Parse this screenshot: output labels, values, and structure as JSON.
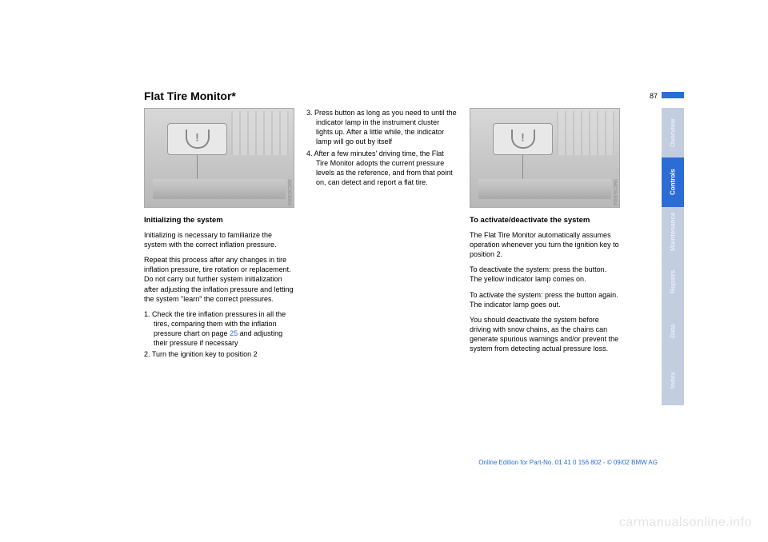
{
  "page": {
    "title": "Flat Tire Monitor*",
    "number": "87"
  },
  "col1": {
    "figure_code": "3MC05300A",
    "subhead": "Initializing the system",
    "p1": "Initializing is necessary to familiarize the system with the correct inflation pressure.",
    "p2": "Repeat this process after any changes in tire inflation pressure, tire rotation or replacement. Do not carry out further system initialization after adjusting the inflation pressure and letting the system \"learn\" the correct pressures.",
    "li1a": "1. Check the tire inflation pressures in all the tires, comparing them with the inflation pressure chart on page ",
    "li1_link": "25",
    "li1b": " and adjusting their pressure if necessary",
    "li2": "2. Turn the ignition key to position 2"
  },
  "col2": {
    "li3": "3. Press button as long as you need to until the indicator lamp in the instrument cluster lights up. After a little while, the indicator lamp will go out by itself",
    "li4": "4. After a few minutes' driving time, the Flat Tire Monitor adopts the current pressure levels as the reference, and from that point on, can detect and report a flat tire."
  },
  "col3": {
    "figure_code": "3MC05300A",
    "subhead": "To activate/deactivate the system",
    "p1": "The Flat Tire Monitor automatically assumes operation whenever you turn the ignition key to position 2.",
    "p2": "To deactivate the system: press the button. The yellow indicator lamp comes on.",
    "p3": "To activate the system: press the button again. The indicator lamp goes out.",
    "p4": "You should deactivate the system before driving with snow chains, as the chains can generate spurious warnings and/or prevent the system from detecting actual pressure loss."
  },
  "tabs": {
    "t1": "Overview",
    "t2": "Controls",
    "t3": "Maintenance",
    "t4": "Repairs",
    "t5": "Data",
    "t6": "Index"
  },
  "footer": "Online Edition for Part-No. 01 41 0 156 802 - © 09/02 BMW AG",
  "watermark": "carmanualsonline.info"
}
